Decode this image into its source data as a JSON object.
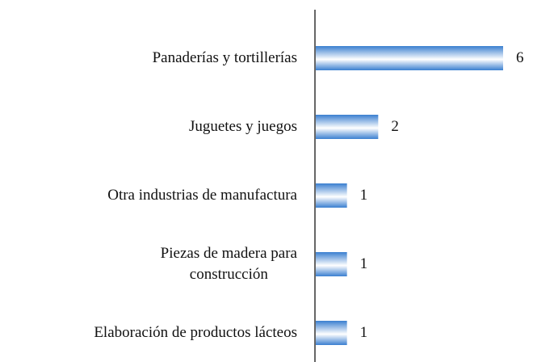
{
  "chart_data": {
    "type": "bar",
    "orientation": "horizontal",
    "categories": [
      "Panaderías y tortillerías",
      "Juguetes y juegos",
      "Otra industrias de manufactura",
      "Piezas de madera para\nconstrucción",
      "Elaboración de productos lácteos"
    ],
    "values": [
      6,
      2,
      1,
      1,
      1
    ],
    "color": "#3a7fd0"
  }
}
